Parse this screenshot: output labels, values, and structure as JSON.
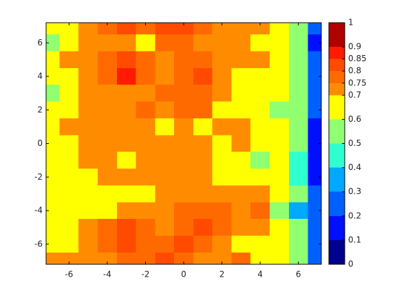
{
  "chart_data": {
    "type": "contourf",
    "x": [
      -7,
      -6,
      -5,
      -4,
      -3,
      -2,
      -1,
      0,
      1,
      2,
      3,
      4,
      5,
      6,
      7
    ],
    "y": [
      7,
      6,
      5,
      4,
      3,
      2,
      1,
      0,
      -1,
      -2,
      -3,
      -4,
      -5,
      -6,
      -7
    ],
    "z": [
      [
        0.65,
        0.65,
        0.72,
        0.78,
        0.82,
        0.78,
        0.8,
        0.83,
        0.78,
        0.72,
        0.72,
        0.72,
        0.68,
        0.55,
        0.2
      ],
      [
        0.58,
        0.65,
        0.72,
        0.72,
        0.73,
        0.66,
        0.78,
        0.78,
        0.72,
        0.72,
        0.72,
        0.68,
        0.65,
        0.5,
        0.15
      ],
      [
        0.65,
        0.7,
        0.72,
        0.76,
        0.8,
        0.76,
        0.73,
        0.76,
        0.78,
        0.72,
        0.72,
        0.72,
        0.66,
        0.55,
        0.2
      ],
      [
        0.6,
        0.68,
        0.72,
        0.77,
        0.86,
        0.76,
        0.73,
        0.77,
        0.82,
        0.74,
        0.68,
        0.6,
        0.68,
        0.55,
        0.2
      ],
      [
        0.58,
        0.66,
        0.71,
        0.73,
        0.73,
        0.72,
        0.77,
        0.77,
        0.76,
        0.72,
        0.66,
        0.62,
        0.6,
        0.55,
        0.25
      ],
      [
        0.65,
        0.68,
        0.72,
        0.72,
        0.72,
        0.76,
        0.72,
        0.76,
        0.76,
        0.68,
        0.66,
        0.65,
        0.58,
        0.52,
        0.2
      ],
      [
        0.68,
        0.7,
        0.72,
        0.72,
        0.73,
        0.72,
        0.66,
        0.72,
        0.68,
        0.72,
        0.72,
        0.68,
        0.6,
        0.5,
        0.15
      ],
      [
        0.62,
        0.68,
        0.72,
        0.72,
        0.72,
        0.72,
        0.72,
        0.72,
        0.72,
        0.66,
        0.7,
        0.65,
        0.6,
        0.5,
        0.15
      ],
      [
        0.65,
        0.66,
        0.7,
        0.72,
        0.66,
        0.72,
        0.73,
        0.72,
        0.72,
        0.66,
        0.66,
        0.58,
        0.62,
        0.48,
        0.15
      ],
      [
        0.65,
        0.62,
        0.66,
        0.72,
        0.72,
        0.72,
        0.72,
        0.72,
        0.71,
        0.68,
        0.65,
        0.65,
        0.6,
        0.45,
        0.15
      ],
      [
        0.68,
        0.66,
        0.68,
        0.66,
        0.68,
        0.66,
        0.72,
        0.72,
        0.72,
        0.72,
        0.72,
        0.72,
        0.6,
        0.5,
        0.2
      ],
      [
        0.66,
        0.62,
        0.66,
        0.68,
        0.72,
        0.73,
        0.73,
        0.76,
        0.77,
        0.78,
        0.74,
        0.78,
        0.58,
        0.35,
        0.2
      ],
      [
        0.62,
        0.66,
        0.72,
        0.77,
        0.82,
        0.76,
        0.72,
        0.76,
        0.8,
        0.78,
        0.72,
        0.72,
        0.62,
        0.55,
        0.25
      ],
      [
        0.66,
        0.66,
        0.72,
        0.77,
        0.8,
        0.78,
        0.78,
        0.8,
        0.76,
        0.72,
        0.68,
        0.66,
        0.6,
        0.5,
        0.2
      ],
      [
        0.7,
        0.7,
        0.72,
        0.72,
        0.76,
        0.78,
        0.8,
        0.77,
        0.72,
        0.72,
        0.78,
        0.66,
        0.6,
        0.55,
        0.2
      ]
    ],
    "xlim": [
      -7.2,
      7.2
    ],
    "ylim": [
      -7.2,
      7.2
    ],
    "xticks": [
      -6,
      -4,
      -2,
      0,
      2,
      4,
      6
    ],
    "yticks": [
      -6,
      -4,
      -2,
      0,
      2,
      4,
      6
    ],
    "clim": [
      0,
      1
    ],
    "levels": [
      0,
      0.1,
      0.2,
      0.3,
      0.4,
      0.5,
      0.6,
      0.7,
      0.75,
      0.8,
      0.85,
      0.9,
      1
    ],
    "colors": [
      "#00008f",
      "#0010ff",
      "#0060ff",
      "#00a8ff",
      "#30ffd0",
      "#90ff70",
      "#ffff00",
      "#ff8c00",
      "#ff6a00",
      "#ff4a00",
      "#ff1a00",
      "#b00000"
    ]
  }
}
